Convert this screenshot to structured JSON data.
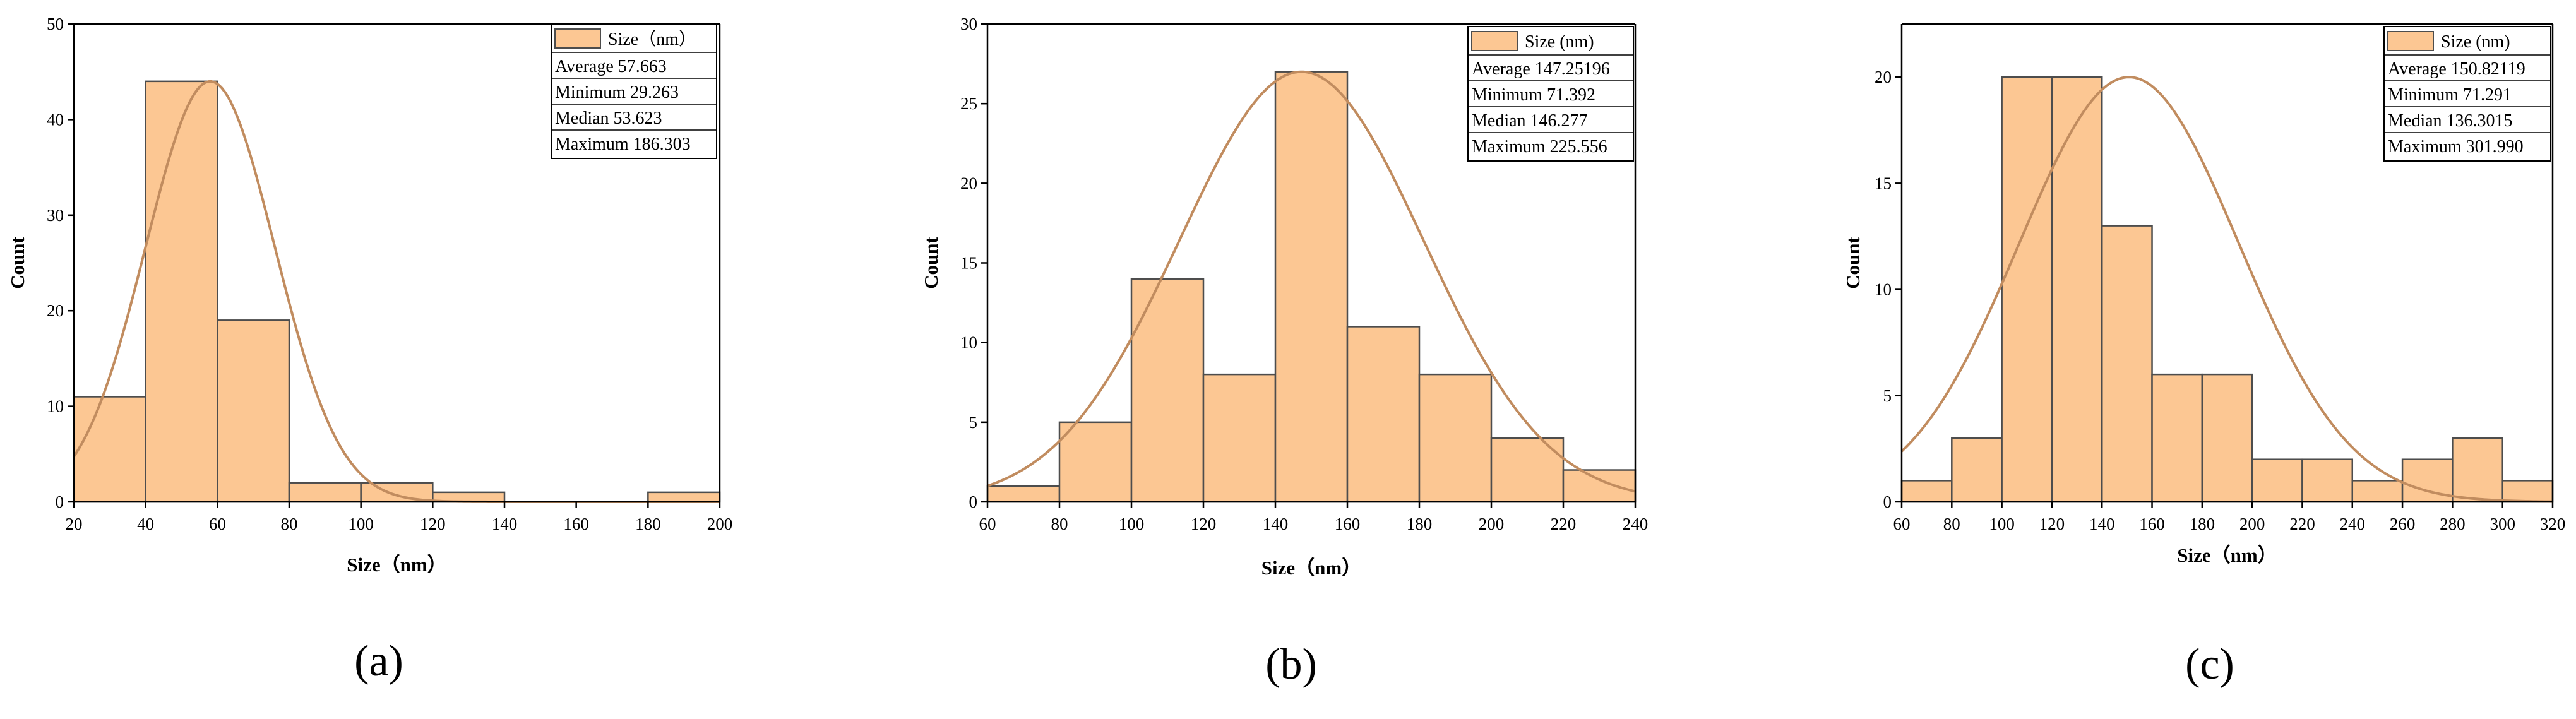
{
  "colors": {
    "bar_fill": "#FCC793",
    "bar_stroke": "#4d4d4d",
    "curve": "#C18C5F",
    "axis": "#000000",
    "background": "#FFFFFF"
  },
  "chart_data": [
    {
      "type": "bar",
      "caption": "(a)",
      "xlabel": "Size（nm）",
      "ylabel": "Count",
      "xlim": [
        20,
        200
      ],
      "ylim": [
        0,
        50
      ],
      "xticks": [
        "20",
        "40",
        "60",
        "80",
        "100",
        "120",
        "140",
        "160",
        "180",
        "200"
      ],
      "yticks": [
        "0",
        "10",
        "20",
        "30",
        "40",
        "50"
      ],
      "bins": [
        [
          20,
          40
        ],
        [
          40,
          60
        ],
        [
          60,
          80
        ],
        [
          80,
          100
        ],
        [
          100,
          120
        ],
        [
          120,
          140
        ],
        [
          140,
          160
        ],
        [
          160,
          180
        ],
        [
          180,
          200
        ]
      ],
      "values": [
        11,
        44,
        19,
        2,
        2,
        1,
        0,
        0,
        1
      ],
      "fit": {
        "type": "normal",
        "mean": 58,
        "sd": 18,
        "peak": 44
      },
      "legend": {
        "label": "Size（nm）",
        "stats": [
          "Average  57.663",
          "Minimum  29.263",
          "Median  53.623",
          "Maximum  186.303"
        ]
      }
    },
    {
      "type": "bar",
      "caption": "(b)",
      "xlabel": "Size（nm）",
      "ylabel": "Count",
      "xlim": [
        60,
        240
      ],
      "ylim": [
        0,
        30
      ],
      "xticks": [
        "60",
        "80",
        "100",
        "120",
        "140",
        "160",
        "180",
        "200",
        "220",
        "240"
      ],
      "yticks": [
        "0",
        "5",
        "10",
        "15",
        "20",
        "25",
        "30"
      ],
      "bins": [
        [
          60,
          80
        ],
        [
          80,
          100
        ],
        [
          100,
          120
        ],
        [
          120,
          140
        ],
        [
          140,
          160
        ],
        [
          160,
          180
        ],
        [
          180,
          200
        ],
        [
          200,
          220
        ],
        [
          220,
          240
        ]
      ],
      "values": [
        1,
        5,
        14,
        8,
        27,
        11,
        8,
        4,
        2
      ],
      "fit": {
        "type": "normal",
        "mean": 147.25,
        "sd": 34,
        "peak": 27
      },
      "legend": {
        "label": "Size (nm)",
        "stats": [
          "Average 147.25196",
          "Minimum 71.392",
          "Median 146.277",
          "Maximum 225.556"
        ]
      }
    },
    {
      "type": "bar",
      "caption": "(c)",
      "xlabel": "Size（nm）",
      "ylabel": "Count",
      "xlim": [
        60,
        320
      ],
      "ylim": [
        0,
        22.5
      ],
      "xticks": [
        "60",
        "80",
        "100",
        "120",
        "140",
        "160",
        "180",
        "200",
        "220",
        "240",
        "260",
        "280",
        "300",
        "320"
      ],
      "yticks": [
        "0",
        "5",
        "10",
        "15",
        "20"
      ],
      "bins": [
        [
          60,
          80
        ],
        [
          80,
          100
        ],
        [
          100,
          120
        ],
        [
          120,
          140
        ],
        [
          140,
          160
        ],
        [
          160,
          180
        ],
        [
          180,
          200
        ],
        [
          200,
          220
        ],
        [
          220,
          240
        ],
        [
          240,
          260
        ],
        [
          260,
          280
        ],
        [
          280,
          300
        ],
        [
          300,
          320
        ]
      ],
      "values": [
        1,
        3,
        20,
        20,
        13,
        6,
        6,
        2,
        2,
        1,
        2,
        3,
        1
      ],
      "fit": {
        "type": "normal",
        "mean": 150.8,
        "sd": 44,
        "peak": 20
      },
      "legend": {
        "label": "Size (nm)",
        "stats": [
          "Average 150.82119",
          "Minimum 71.291",
          "Median 136.3015",
          "Maximum 301.990"
        ]
      }
    }
  ]
}
